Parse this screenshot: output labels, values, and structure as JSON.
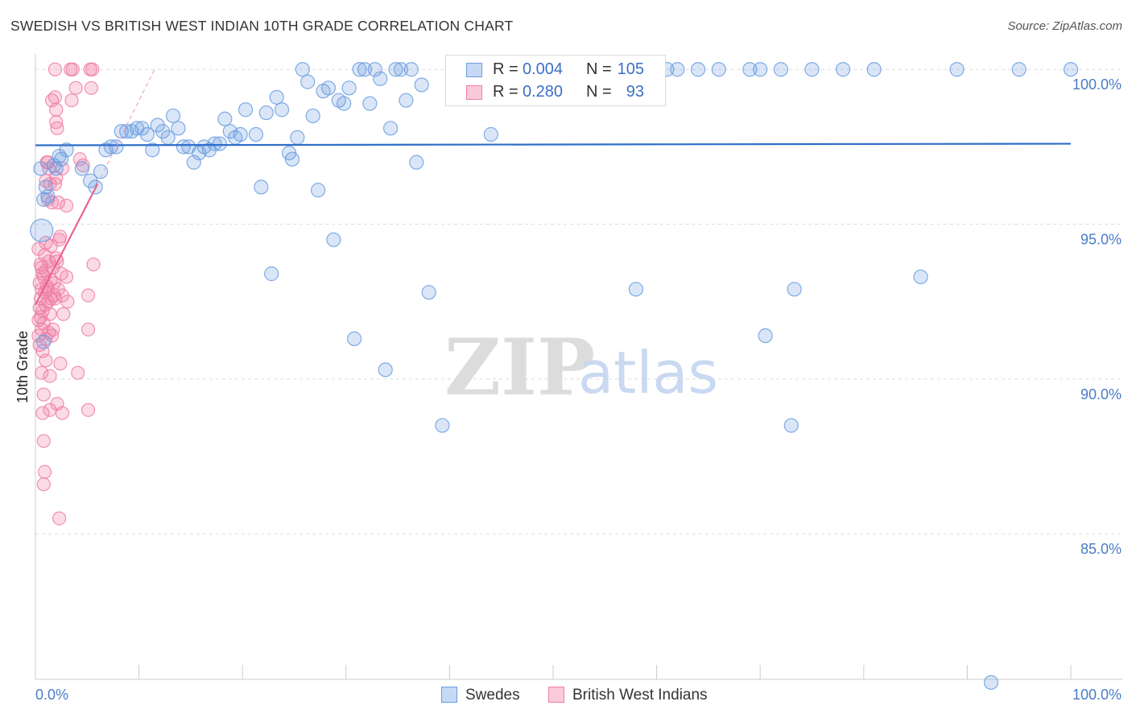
{
  "header": {
    "title": "SWEDISH VS BRITISH WEST INDIAN 10TH GRADE CORRELATION CHART",
    "source": "Source: ZipAtlas.com"
  },
  "watermark": {
    "zip": "ZIP",
    "atlas": "atlas"
  },
  "legend": {
    "r_label": "R =",
    "n_label": "N =",
    "rows": [
      {
        "name": "Swedes",
        "r": "0.004",
        "n": "105"
      },
      {
        "name": "British West Indians",
        "r": "0.280",
        "n": "93"
      }
    ]
  },
  "chart_data": {
    "type": "scatter",
    "title": "SWEDISH VS BRITISH WEST INDIAN 10TH GRADE CORRELATION CHART",
    "xlabel": "",
    "ylabel": "10th Grade",
    "xlim": [
      0,
      100
    ],
    "ylim": [
      80.3,
      100.5
    ],
    "x_tick_labels": [
      "0.0%",
      "100.0%"
    ],
    "y_ticks": [
      {
        "value": 100,
        "label": "100.0%"
      },
      {
        "value": 95,
        "label": "95.0%"
      },
      {
        "value": 90,
        "label": "90.0%"
      },
      {
        "value": 85,
        "label": "85.0%"
      }
    ],
    "colors": {
      "swedes": "#6a9de0",
      "bwi": "#ef7fa4",
      "swedes_line": "#2f6ec8",
      "bwi_line": "#e8648f"
    },
    "series": [
      {
        "name": "Swedes",
        "trend": {
          "x0": 0,
          "y0": 97.55,
          "x1": 100,
          "y1": 97.6
        },
        "points": [
          [
            0.5,
            96.8
          ],
          [
            0.6,
            94.8
          ],
          [
            0.8,
            95.8
          ],
          [
            1.0,
            96.2
          ],
          [
            1.8,
            96.9
          ],
          [
            2.0,
            96.8
          ],
          [
            2.3,
            97.2
          ],
          [
            2.5,
            97.1
          ],
          [
            3.0,
            97.4
          ],
          [
            4.5,
            96.8
          ],
          [
            5.3,
            96.4
          ],
          [
            5.8,
            96.2
          ],
          [
            6.3,
            96.7
          ],
          [
            6.8,
            97.4
          ],
          [
            7.3,
            97.5
          ],
          [
            7.8,
            97.5
          ],
          [
            8.3,
            98.0
          ],
          [
            8.8,
            98.0
          ],
          [
            9.3,
            98.0
          ],
          [
            9.8,
            98.1
          ],
          [
            10.3,
            98.1
          ],
          [
            10.8,
            97.9
          ],
          [
            11.3,
            97.4
          ],
          [
            11.8,
            98.2
          ],
          [
            12.3,
            98.0
          ],
          [
            12.8,
            97.8
          ],
          [
            13.3,
            98.5
          ],
          [
            13.8,
            98.1
          ],
          [
            14.3,
            97.5
          ],
          [
            14.8,
            97.5
          ],
          [
            15.3,
            97.0
          ],
          [
            15.8,
            97.3
          ],
          [
            16.3,
            97.5
          ],
          [
            16.8,
            97.4
          ],
          [
            17.3,
            97.6
          ],
          [
            17.8,
            97.6
          ],
          [
            18.3,
            98.4
          ],
          [
            18.8,
            98.0
          ],
          [
            19.3,
            97.8
          ],
          [
            19.8,
            97.9
          ],
          [
            20.3,
            98.7
          ],
          [
            21.3,
            97.9
          ],
          [
            21.8,
            96.2
          ],
          [
            22.3,
            98.6
          ],
          [
            22.8,
            93.4
          ],
          [
            23.3,
            99.1
          ],
          [
            23.8,
            98.7
          ],
          [
            24.5,
            97.3
          ],
          [
            24.8,
            97.1
          ],
          [
            25.3,
            97.8
          ],
          [
            25.8,
            100.0
          ],
          [
            26.3,
            99.6
          ],
          [
            26.8,
            98.5
          ],
          [
            27.3,
            96.1
          ],
          [
            27.8,
            99.3
          ],
          [
            28.3,
            99.4
          ],
          [
            28.8,
            94.5
          ],
          [
            29.3,
            99.0
          ],
          [
            29.8,
            98.9
          ],
          [
            30.3,
            99.4
          ],
          [
            30.8,
            91.3
          ],
          [
            31.3,
            100.0
          ],
          [
            31.8,
            100.0
          ],
          [
            32.3,
            98.9
          ],
          [
            32.8,
            100.0
          ],
          [
            33.3,
            99.7
          ],
          [
            33.8,
            90.3
          ],
          [
            34.3,
            98.1
          ],
          [
            34.8,
            100.0
          ],
          [
            35.3,
            100.0
          ],
          [
            35.8,
            99.0
          ],
          [
            36.3,
            100.0
          ],
          [
            36.8,
            97.0
          ],
          [
            37.3,
            99.5
          ],
          [
            38.0,
            92.8
          ],
          [
            39.3,
            88.5
          ],
          [
            40.3,
            99.6
          ],
          [
            41.0,
            100.0
          ],
          [
            43.0,
            100.0
          ],
          [
            44.0,
            97.9
          ],
          [
            47.0,
            100.0
          ],
          [
            50.0,
            100.0
          ],
          [
            52.0,
            100.0
          ],
          [
            54.0,
            100.0
          ],
          [
            58.0,
            92.9
          ],
          [
            61.0,
            100.0
          ],
          [
            62.0,
            100.0
          ],
          [
            64.0,
            100.0
          ],
          [
            66.0,
            100.0
          ],
          [
            69.0,
            100.0
          ],
          [
            70.0,
            100.0
          ],
          [
            70.5,
            91.4
          ],
          [
            72.0,
            100.0
          ],
          [
            73.0,
            88.5
          ],
          [
            73.3,
            92.9
          ],
          [
            75.0,
            100.0
          ],
          [
            78.0,
            100.0
          ],
          [
            81.0,
            100.0
          ],
          [
            85.5,
            93.3
          ],
          [
            89.0,
            100.0
          ],
          [
            95.0,
            100.0
          ],
          [
            100.0,
            100.0
          ],
          [
            92.3,
            80.2
          ],
          [
            0.8,
            91.2
          ],
          [
            1.2,
            95.9
          ]
        ]
      },
      {
        "name": "British West Indians",
        "trend": {
          "x0": 0,
          "y0": 92.4,
          "x1": 6.0,
          "y1": 96.3,
          "dash_to_x": 11.5,
          "dash_to_y": 100.0
        },
        "points": [
          [
            1.9,
            100.0
          ],
          [
            3.4,
            100.0
          ],
          [
            3.6,
            100.0
          ],
          [
            5.3,
            100.0
          ],
          [
            5.5,
            100.0
          ],
          [
            1.6,
            99.0
          ],
          [
            1.9,
            99.1
          ],
          [
            3.5,
            99.0
          ],
          [
            3.9,
            99.4
          ],
          [
            5.4,
            99.4
          ],
          [
            2.0,
            98.7
          ],
          [
            2.0,
            98.3
          ],
          [
            2.1,
            98.1
          ],
          [
            1.2,
            97.0
          ],
          [
            1.3,
            96.8
          ],
          [
            1.0,
            96.4
          ],
          [
            1.4,
            96.3
          ],
          [
            2.0,
            96.5
          ],
          [
            1.2,
            95.8
          ],
          [
            1.6,
            95.7
          ],
          [
            2.2,
            95.7
          ],
          [
            3.0,
            95.6
          ],
          [
            4.3,
            97.1
          ],
          [
            1.0,
            94.4
          ],
          [
            1.5,
            94.3
          ],
          [
            2.3,
            94.5
          ],
          [
            0.3,
            94.2
          ],
          [
            0.5,
            93.7
          ],
          [
            0.8,
            93.3
          ],
          [
            1.0,
            93.5
          ],
          [
            1.3,
            93.8
          ],
          [
            1.7,
            93.6
          ],
          [
            2.1,
            93.8
          ],
          [
            2.5,
            93.4
          ],
          [
            3.0,
            93.3
          ],
          [
            5.6,
            93.7
          ],
          [
            0.4,
            93.1
          ],
          [
            0.6,
            92.9
          ],
          [
            0.9,
            92.8
          ],
          [
            1.2,
            92.9
          ],
          [
            1.5,
            93.2
          ],
          [
            1.8,
            92.7
          ],
          [
            2.2,
            92.9
          ],
          [
            2.6,
            92.7
          ],
          [
            3.1,
            92.5
          ],
          [
            5.1,
            92.7
          ],
          [
            0.4,
            92.3
          ],
          [
            0.7,
            92.2
          ],
          [
            1.0,
            92.4
          ],
          [
            1.4,
            92.1
          ],
          [
            1.9,
            92.6
          ],
          [
            2.7,
            92.1
          ],
          [
            0.3,
            91.9
          ],
          [
            0.6,
            91.6
          ],
          [
            1.0,
            91.3
          ],
          [
            1.3,
            91.5
          ],
          [
            1.7,
            91.6
          ],
          [
            5.1,
            91.6
          ],
          [
            0.4,
            91.1
          ],
          [
            0.7,
            90.9
          ],
          [
            1.0,
            90.6
          ],
          [
            2.4,
            90.5
          ],
          [
            4.1,
            90.2
          ],
          [
            0.6,
            90.2
          ],
          [
            0.8,
            89.5
          ],
          [
            1.4,
            89.0
          ],
          [
            2.1,
            89.2
          ],
          [
            2.6,
            88.9
          ],
          [
            5.1,
            89.0
          ],
          [
            0.7,
            88.9
          ],
          [
            0.8,
            88.0
          ],
          [
            0.9,
            87.0
          ],
          [
            0.8,
            86.6
          ],
          [
            2.3,
            85.5
          ],
          [
            0.5,
            92.0
          ],
          [
            0.8,
            91.8
          ],
          [
            1.1,
            93.0
          ],
          [
            1.5,
            92.6
          ],
          [
            1.8,
            93.1
          ],
          [
            0.6,
            93.6
          ],
          [
            0.9,
            94.0
          ],
          [
            1.2,
            92.5
          ],
          [
            1.6,
            91.4
          ],
          [
            2.0,
            93.9
          ],
          [
            2.4,
            94.6
          ],
          [
            0.3,
            91.4
          ],
          [
            0.7,
            93.4
          ],
          [
            1.9,
            96.3
          ],
          [
            2.6,
            96.8
          ],
          [
            4.6,
            96.9
          ],
          [
            1.1,
            97.0
          ],
          [
            0.5,
            92.6
          ],
          [
            1.4,
            90.1
          ]
        ]
      }
    ]
  }
}
